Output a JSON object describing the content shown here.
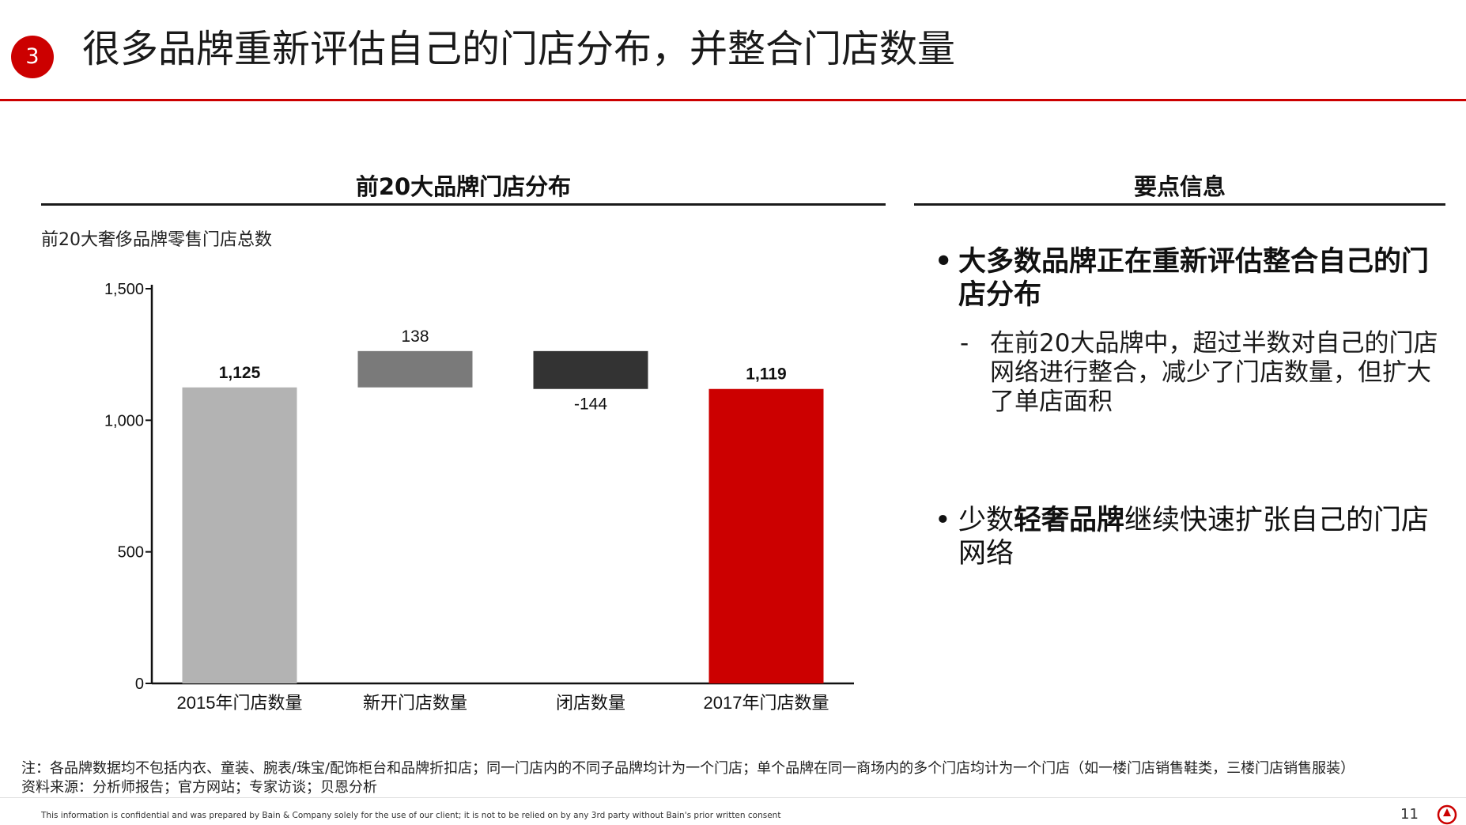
{
  "header": {
    "badge": "3",
    "title": "很多品牌重新评估自己的门店分布，并整合门店数量"
  },
  "left_section": {
    "title": "前20大品牌门店分布",
    "chart_subtitle": "前20大奢侈品牌零售门店总数"
  },
  "right_section": {
    "title": "要点信息",
    "bullet1": "大多数品牌正在重新评估整合自己的门店分布",
    "sub_bullet_dash": "-",
    "sub_bullet1": "在前20大品牌中，超过半数对自己的门店网络进行整合，减少了门店数量，但扩大了单店面积",
    "bullet2_pre": "少数",
    "bullet2_bold": "轻奢品牌",
    "bullet2_post": "继续快速扩张自己的门店网络",
    "bullet_symbol": "•"
  },
  "chart_data": {
    "type": "bar",
    "subtype": "waterfall",
    "categories": [
      "2015年门店数量",
      "新开门店数量",
      "闭店数量",
      "2017年门店数量"
    ],
    "values": [
      1125,
      138,
      -144,
      1119
    ],
    "labels": [
      "1,125",
      "138",
      "-144",
      "1,119"
    ],
    "ylim": [
      0,
      1500
    ],
    "yticks": [
      0,
      500,
      1000,
      1500
    ],
    "ytick_labels": [
      "0",
      "500",
      "1,000",
      "1,500"
    ],
    "colors": [
      "#b3b3b3",
      "#7a7a7a",
      "#333333",
      "#cc0000"
    ],
    "grid": false
  },
  "footer": {
    "note": "注：各品牌数据均不包括内衣、童装、腕表/珠宝/配饰柜台和品牌折扣店；同一门店内的不同子品牌均计为一个门店；单个品牌在同一商场内的多个门店均计为一个门店（如一楼门店销售鞋类，三楼门店销售服装）",
    "source": "资料来源：分析师报告；官方网站；专家访谈；贝恩分析",
    "disclaimer": "This information is confidential and was prepared by Bain & Company solely for the use of our client; it is not to be relied on by any 3rd party without Bain's prior written consent",
    "page_number": "11"
  }
}
